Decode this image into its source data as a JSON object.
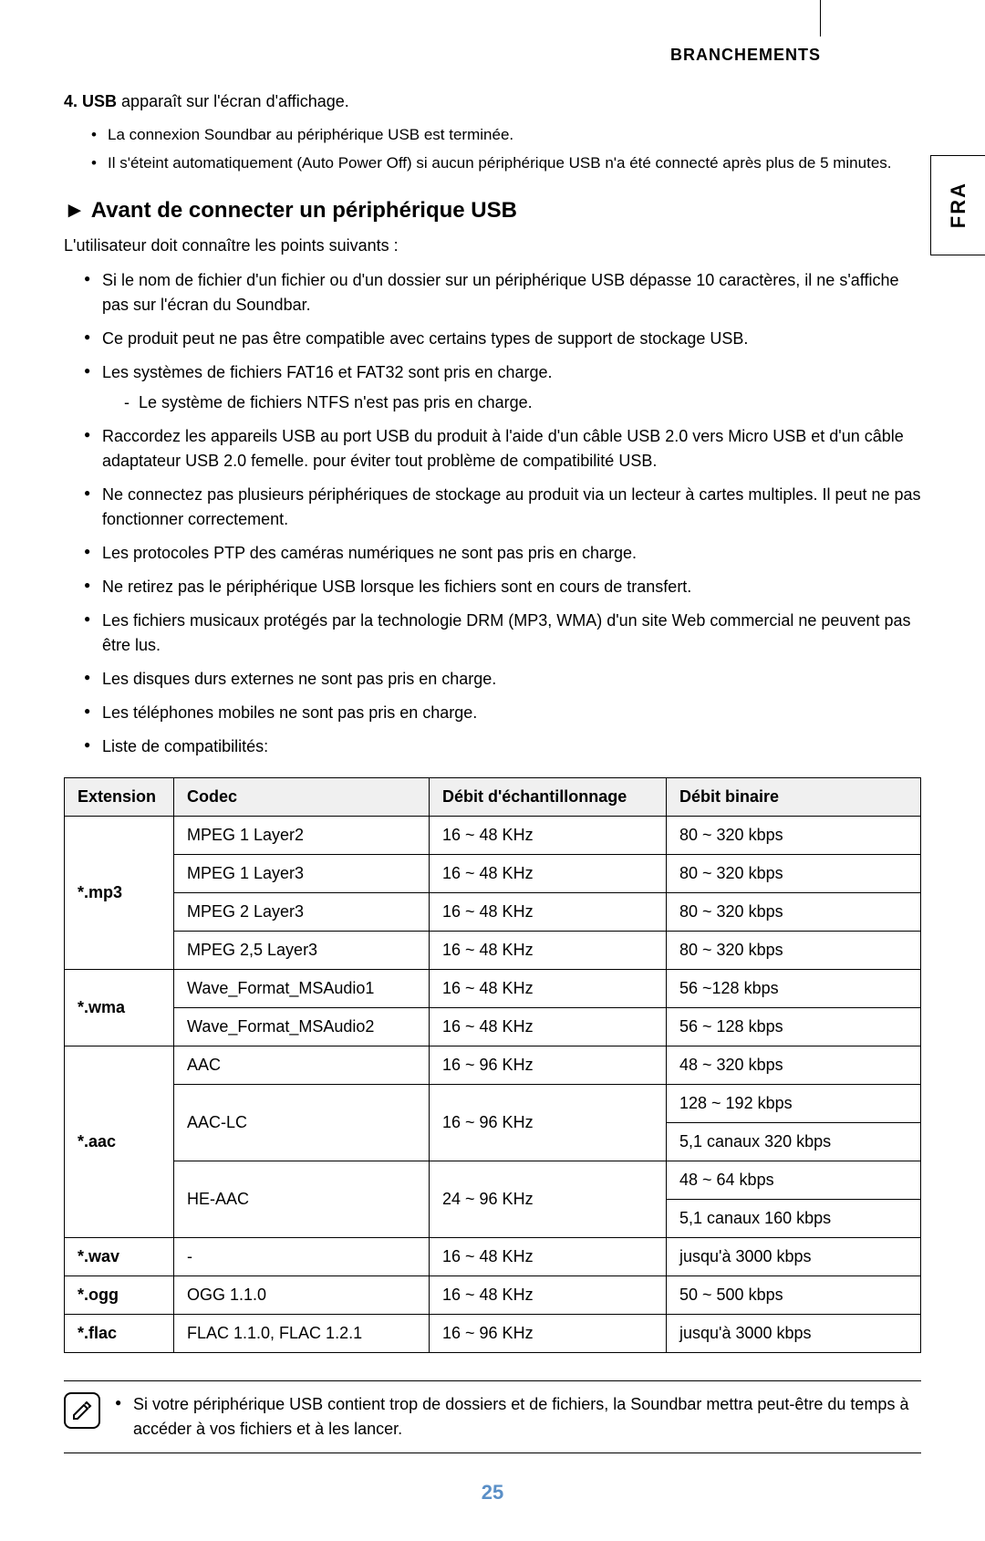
{
  "header": "BRANCHEMENTS",
  "side_tab": "FRA",
  "step": {
    "num": "4.",
    "bold": "USB",
    "text": " apparaît sur l'écran d'affichage.",
    "sub": [
      "La connexion Soundbar au périphérique USB est terminée.",
      "Il s'éteint automatiquement (Auto Power Off) si aucun périphérique USB n'a été connecté après plus de 5 minutes."
    ]
  },
  "section_title": "Avant de connecter un périphérique USB",
  "intro": "L'utilisateur doit connaître les points suivants :",
  "bullets": [
    {
      "text": "Si le nom de fichier d'un fichier ou d'un dossier sur un périphérique USB dépasse 10 caractères, il ne s'affiche pas sur l'écran du Soundbar."
    },
    {
      "text": "Ce produit peut ne pas être compatible avec certains types de support de stockage USB."
    },
    {
      "text": "Les systèmes de fichiers FAT16 et FAT32 sont pris en charge.",
      "sub": [
        "Le système de fichiers NTFS n'est pas pris en charge."
      ]
    },
    {
      "text": "Raccordez les appareils USB au port USB du produit à l'aide d'un câble USB 2.0 vers Micro USB et d'un câble adaptateur USB 2.0 femelle. pour éviter tout problème de compatibilité USB."
    },
    {
      "text": "Ne connectez pas plusieurs périphériques de stockage au produit via un lecteur à cartes multiples. Il peut ne pas fonctionner correctement."
    },
    {
      "text": "Les protocoles PTP des caméras numériques ne sont pas pris en charge."
    },
    {
      "text": "Ne retirez pas le périphérique USB lorsque les fichiers sont en cours de transfert."
    },
    {
      "text": "Les fichiers musicaux protégés par la technologie DRM (MP3, WMA) d'un site Web commercial ne peuvent pas être lus."
    },
    {
      "text": "Les disques durs externes ne sont pas pris en charge."
    },
    {
      "text": "Les téléphones mobiles ne sont pas pris en charge."
    },
    {
      "text": "Liste de compatibilités:"
    }
  ],
  "table": {
    "headers": [
      "Extension",
      "Codec",
      "Débit d'échantillonnage",
      "Débit binaire"
    ],
    "groups": [
      {
        "ext": "*.mp3",
        "rows": [
          {
            "codec": "MPEG 1 Layer2",
            "rate": "16 ~ 48 KHz",
            "bit": "80 ~ 320 kbps"
          },
          {
            "codec": "MPEG 1 Layer3",
            "rate": "16 ~ 48 KHz",
            "bit": "80 ~ 320 kbps"
          },
          {
            "codec": "MPEG 2 Layer3",
            "rate": "16 ~ 48 KHz",
            "bit": "80 ~ 320 kbps"
          },
          {
            "codec": "MPEG 2,5 Layer3",
            "rate": "16 ~ 48 KHz",
            "bit": "80 ~ 320 kbps"
          }
        ]
      },
      {
        "ext": "*.wma",
        "rows": [
          {
            "codec": "Wave_Format_MSAudio1",
            "rate": "16 ~ 48 KHz",
            "bit": "56 ~128 kbps"
          },
          {
            "codec": "Wave_Format_MSAudio2",
            "rate": "16 ~ 48 KHz",
            "bit": "56 ~ 128 kbps"
          }
        ]
      },
      {
        "ext": "*.aac",
        "rows": [
          {
            "codec": "AAC",
            "rate": "16 ~ 96 KHz",
            "bit": "48 ~ 320 kbps"
          },
          {
            "codec": "AAC-LC",
            "rate": "16 ~ 96 KHz",
            "bit_double": [
              "128 ~ 192 kbps",
              "5,1 canaux 320 kbps"
            ]
          },
          {
            "codec": "HE-AAC",
            "rate": "24 ~ 96 KHz",
            "bit_double": [
              "48 ~ 64 kbps",
              "5,1 canaux 160 kbps"
            ]
          }
        ]
      },
      {
        "ext": "*.wav",
        "rows": [
          {
            "codec": "-",
            "rate": "16 ~ 48 KHz",
            "bit": "jusqu'à 3000 kbps"
          }
        ]
      },
      {
        "ext": "*.ogg",
        "rows": [
          {
            "codec": "OGG 1.1.0",
            "rate": "16 ~ 48 KHz",
            "bit": "50 ~ 500 kbps"
          }
        ]
      },
      {
        "ext": "*.flac",
        "rows": [
          {
            "codec": "FLAC 1.1.0, FLAC 1.2.1",
            "rate": "16 ~ 96 KHz",
            "bit": "jusqu'à 3000 kbps"
          }
        ]
      }
    ]
  },
  "note": "Si votre périphérique USB contient trop de dossiers et de fichiers, la Soundbar mettra peut-être du temps à accéder à vos fichiers et à les lancer.",
  "page_num": "25"
}
